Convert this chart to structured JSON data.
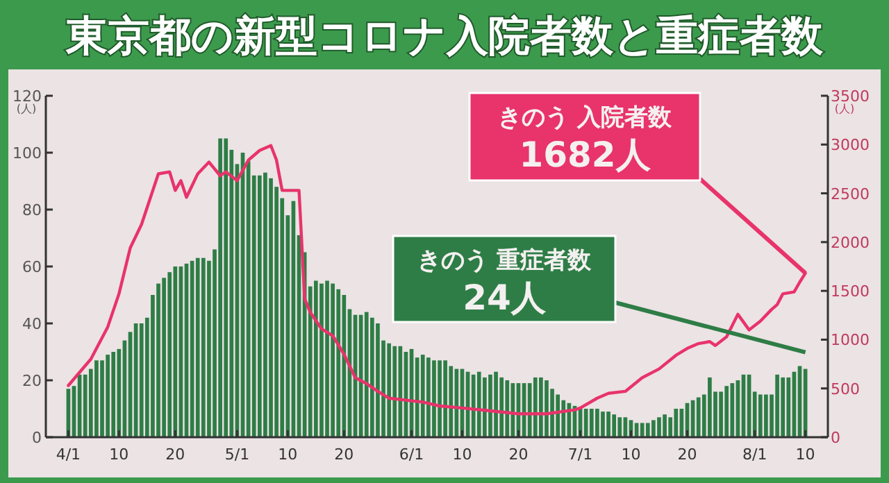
{
  "chart_data": {
    "type": "bar",
    "title": "東京都の新型コロナ入院者数と重症者数",
    "ylabel": "(人)",
    "y2label": "(人)",
    "annotations": [
      "きのう 入院者数\n1682人",
      "きのう 重症者数\n24人"
    ],
    "x": [
      "--04-01",
      "--04-02",
      "--04-03",
      "--04-04",
      "--04-05",
      "--04-06",
      "--04-07",
      "--04-08",
      "--04-09",
      "--04-10",
      "--04-11",
      "--04-12",
      "--04-13",
      "--04-14",
      "--04-15",
      "--04-16",
      "--04-17",
      "--04-18",
      "--04-19",
      "--04-20",
      "--04-21",
      "--04-22",
      "--04-23",
      "--04-24",
      "--04-25",
      "--04-26",
      "--04-27",
      "--04-28",
      "--04-29",
      "--04-30",
      "--05-01",
      "--05-02",
      "--05-03",
      "--05-04",
      "--05-05",
      "--05-06",
      "--05-07",
      "--05-08",
      "--05-09",
      "--05-10",
      "--05-11",
      "--05-12",
      "--05-13",
      "--05-14",
      "--05-15",
      "--05-16",
      "--05-17",
      "--05-18",
      "--05-19",
      "--05-20",
      "--05-21",
      "--05-22",
      "--05-23",
      "--05-24",
      "--05-25",
      "--05-26",
      "--05-27",
      "--05-28",
      "--05-29",
      "--05-30",
      "--05-31",
      "--06-01",
      "--06-02",
      "--06-03",
      "--06-04",
      "--06-05",
      "--06-06",
      "--06-07",
      "--06-08",
      "--06-09",
      "--06-10",
      "--06-11",
      "--06-12",
      "--06-13",
      "--06-14",
      "--06-15",
      "--06-16",
      "--06-17",
      "--06-18",
      "--06-19",
      "--06-20",
      "--06-21",
      "--06-22",
      "--06-23",
      "--06-24",
      "--06-25",
      "--06-26",
      "--06-27",
      "--06-28",
      "--06-29",
      "--06-30",
      "--07-01",
      "--07-02",
      "--07-03",
      "--07-04",
      "--07-05",
      "--07-06",
      "--07-07",
      "--07-08",
      "--07-09",
      "--07-10",
      "--07-11",
      "--07-12",
      "--07-13",
      "--07-14",
      "--07-15",
      "--07-16",
      "--07-17",
      "--07-18",
      "--07-19",
      "--07-20",
      "--07-21",
      "--07-22",
      "--07-23",
      "--07-24",
      "--07-25",
      "--07-26",
      "--07-27",
      "--07-28",
      "--07-29",
      "--07-30",
      "--07-31",
      "--08-01",
      "--08-02",
      "--08-03",
      "--08-04",
      "--08-05",
      "--08-06",
      "--08-07",
      "--08-08",
      "--08-09",
      "--08-10"
    ],
    "series": [
      {
        "color": "#2e7d46",
        "values": [
          17,
          18,
          22,
          22,
          24,
          27,
          27,
          29,
          30,
          31,
          34,
          37,
          40,
          40,
          42,
          50,
          54,
          56,
          58,
          60,
          60,
          61,
          62,
          63,
          63,
          62,
          66,
          105,
          105,
          101,
          96,
          100,
          97,
          92,
          92,
          93,
          91,
          88,
          84,
          78,
          83,
          71,
          65,
          53,
          55,
          54,
          55,
          54,
          52,
          50,
          45,
          43,
          43,
          44,
          42,
          40,
          34,
          33,
          32,
          32,
          30,
          31,
          28,
          29,
          28,
          27,
          27,
          27,
          25,
          24,
          24,
          23,
          22,
          23,
          21,
          22,
          23,
          21,
          20,
          19,
          19,
          19,
          19,
          21,
          21,
          20,
          17,
          15,
          13,
          12,
          11,
          10,
          10,
          10,
          10,
          9,
          9,
          8,
          7,
          7,
          6,
          5,
          5,
          5,
          6,
          7,
          8,
          7,
          10,
          10,
          12,
          13,
          14,
          15,
          21,
          16,
          16,
          18,
          19,
          20,
          22,
          22,
          16,
          15,
          15,
          15,
          22,
          21,
          21,
          23,
          25,
          24
        ]
      },
      {
        "type": "line",
        "axis": "y2",
        "color": "#e8336b",
        "x": [
          "--04-01",
          "--04-05",
          "--04-08",
          "--04-10",
          "--04-12",
          "--04-14",
          "--04-17",
          "--04-19",
          "--04-20",
          "--04-21",
          "--04-22",
          "--04-24",
          "--04-26",
          "--04-28",
          "--04-29",
          "--05-01",
          "--05-03",
          "--05-05",
          "--05-07",
          "--05-08",
          "--05-09",
          "--05-12",
          "--05-13",
          "--05-14",
          "--05-16",
          "--05-18",
          "--05-20",
          "--05-22",
          "--05-24",
          "--05-26",
          "--05-28",
          "--05-31",
          "--06-03",
          "--06-06",
          "--06-10",
          "--06-15",
          "--06-20",
          "--06-25",
          "--06-30",
          "--07-01",
          "--07-04",
          "--07-06",
          "--07-09",
          "--07-12",
          "--07-15",
          "--07-18",
          "--07-20",
          "--07-22",
          "--07-24",
          "--07-25",
          "--07-27",
          "--07-29",
          "--07-31",
          "--08-02",
          "--08-04",
          "--08-05",
          "--08-06",
          "--08-08",
          "--08-09",
          "--08-10"
        ],
        "values": [
          530,
          800,
          1130,
          1470,
          1940,
          2180,
          2700,
          2720,
          2530,
          2630,
          2460,
          2700,
          2820,
          2680,
          2720,
          2630,
          2840,
          2940,
          2990,
          2840,
          2530,
          2530,
          1420,
          1280,
          1110,
          1040,
          850,
          610,
          550,
          470,
          400,
          380,
          360,
          320,
          300,
          270,
          240,
          240,
          280,
          300,
          400,
          450,
          470,
          610,
          700,
          840,
          910,
          960,
          980,
          940,
          1030,
          1260,
          1100,
          1190,
          1310,
          1360,
          1470,
          1490,
          1590,
          1682
        ]
      }
    ],
    "xlim": [
      "--03-28",
      "--08-14"
    ],
    "xticks": [
      {
        "value": "--04-01",
        "label": "4/1"
      },
      {
        "value": "--04-10",
        "label": "10"
      },
      {
        "value": "--04-20",
        "label": "20"
      },
      {
        "value": "--05-01",
        "label": "5/1"
      },
      {
        "value": "--05-10",
        "label": "10"
      },
      {
        "value": "--05-20",
        "label": "20"
      },
      {
        "value": "--06-01",
        "label": "6/1"
      },
      {
        "value": "--06-10",
        "label": "10"
      },
      {
        "value": "--06-20",
        "label": "20"
      },
      {
        "value": "--07-01",
        "label": "7/1"
      },
      {
        "value": "--07-10",
        "label": "10"
      },
      {
        "value": "--07-20",
        "label": "20"
      },
      {
        "value": "--08-01",
        "label": "8/1"
      },
      {
        "value": "--08-10",
        "label": "10"
      }
    ],
    "ylim": [
      0,
      120
    ],
    "yticks": [
      0,
      20,
      40,
      60,
      80,
      100,
      120
    ],
    "y2lim": [
      0,
      3500
    ],
    "y2ticks": [
      0,
      500,
      1000,
      1500,
      2000,
      2500,
      3000,
      3500
    ]
  }
}
